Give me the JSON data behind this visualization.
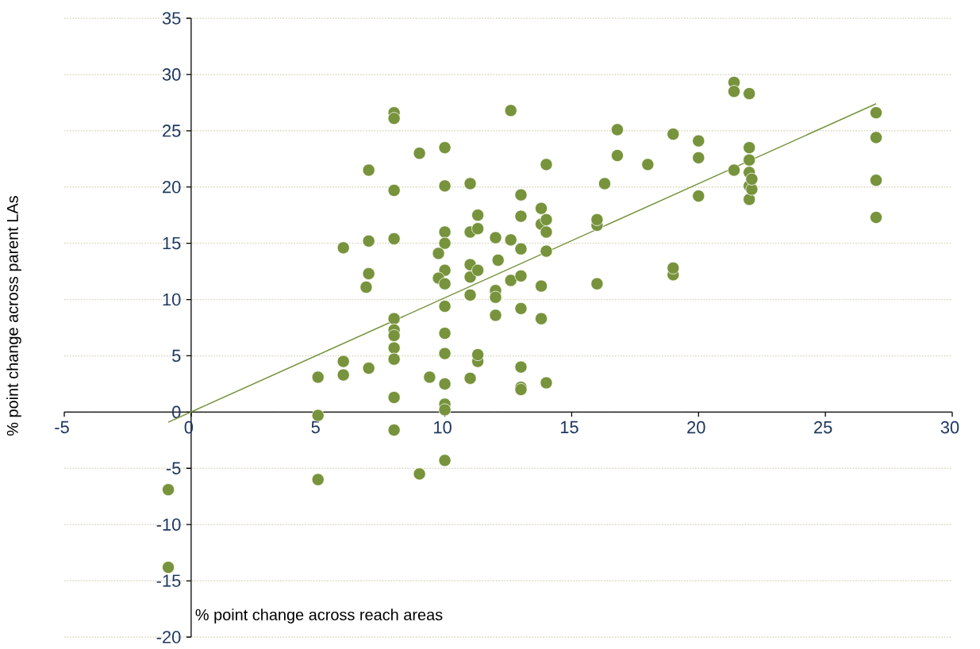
{
  "chart_data": {
    "type": "scatter",
    "xlabel": "% point change across reach areas",
    "ylabel": "% point change across parent LAs",
    "xlim": [
      -5,
      30
    ],
    "xticks": [
      -5,
      0,
      5,
      10,
      15,
      20,
      25,
      30
    ],
    "ylim": [
      -20,
      35
    ],
    "yticks": [
      -20,
      -15,
      -10,
      -5,
      0,
      5,
      10,
      15,
      20,
      25,
      30,
      35
    ],
    "grid": "y",
    "series": [
      {
        "color": "#77933c",
        "marker": "circle",
        "x": [
          -0.9,
          -0.9,
          5.0,
          5.0,
          5.0,
          6.0,
          6.0,
          6.0,
          7.0,
          7.0,
          7.0,
          6.9,
          7.0,
          8.0,
          8.0,
          8.0,
          8.0,
          8.0,
          8.0,
          8.0,
          8.0,
          8.0,
          8.0,
          8.0,
          9.0,
          9.0,
          9.4,
          10.0,
          10.0,
          10.0,
          10.0,
          9.75,
          10.0,
          9.75,
          10.0,
          10.0,
          10.0,
          10.0,
          10.0,
          10.0,
          10.0,
          10.0,
          11.0,
          11.0,
          11.0,
          11.0,
          11.0,
          11.0,
          11.3,
          11.3,
          11.3,
          11.3,
          11.3,
          12.0,
          12.1,
          12.0,
          12.0,
          12.0,
          12.6,
          12.6,
          12.6,
          13.0,
          13.0,
          13.0,
          13.0,
          13.0,
          13.0,
          13.0,
          13.0,
          13.8,
          13.8,
          13.8,
          13.8,
          14.0,
          14.0,
          14.0,
          14.0,
          14.0,
          16.0,
          16.0,
          16.0,
          16.3,
          16.8,
          16.8,
          18.0,
          19.0,
          19.0,
          19.0,
          20.0,
          20.0,
          20.0,
          21.4,
          21.4,
          21.4,
          22.0,
          22.0,
          22.0,
          22.0,
          22.0,
          22.0,
          22.1,
          22.1,
          27.0,
          27.0,
          27.0,
          27.0
        ],
        "values": [
          -6.9,
          -13.8,
          3.1,
          -0.3,
          -6.0,
          4.5,
          3.3,
          14.6,
          3.9,
          15.2,
          12.3,
          11.1,
          21.5,
          26.6,
          26.1,
          19.7,
          15.4,
          8.3,
          7.3,
          6.8,
          5.7,
          4.7,
          1.3,
          -1.6,
          23.0,
          -5.5,
          3.1,
          23.5,
          20.1,
          16.0,
          15.0,
          14.1,
          12.6,
          11.9,
          11.4,
          9.4,
          7.0,
          5.2,
          2.5,
          0.7,
          0.2,
          -4.3,
          20.3,
          16.0,
          13.1,
          12.0,
          10.4,
          3.0,
          17.5,
          16.3,
          12.6,
          4.5,
          5.1,
          15.5,
          13.5,
          10.8,
          10.2,
          8.6,
          26.8,
          15.3,
          11.7,
          19.3,
          17.4,
          14.5,
          12.1,
          9.2,
          4.0,
          2.2,
          2.0,
          18.1,
          16.7,
          11.2,
          8.3,
          22.0,
          17.1,
          16.0,
          14.3,
          2.6,
          16.6,
          17.1,
          11.4,
          20.3,
          25.1,
          22.8,
          22.0,
          24.7,
          12.2,
          12.8,
          24.1,
          22.6,
          19.2,
          29.3,
          28.5,
          21.5,
          28.3,
          23.5,
          22.4,
          21.3,
          20.1,
          18.9,
          19.8,
          20.7,
          26.6,
          24.4,
          20.6,
          17.3
        ]
      },
      {
        "type": "line",
        "color": "#77933c",
        "marker": "none",
        "x": [
          -0.9,
          27.0
        ],
        "values": [
          -0.9,
          27.4
        ]
      }
    ]
  }
}
